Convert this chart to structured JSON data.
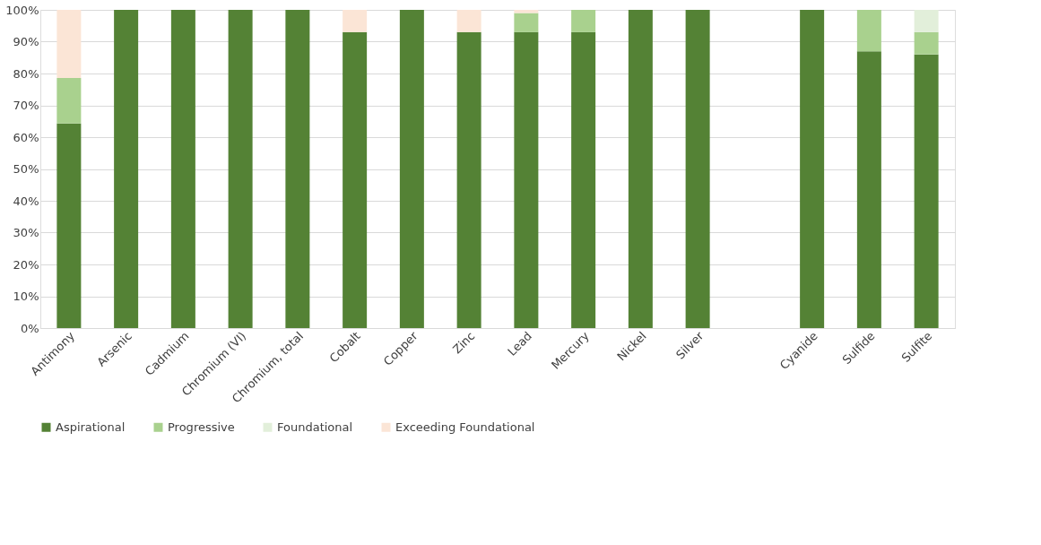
{
  "chart_data": {
    "type": "bar",
    "stacked": true,
    "categories": [
      "Antimony",
      "Arsenic",
      "Cadmium",
      "Chromium (VI)",
      "Chromium, total",
      "Cobalt",
      "Copper",
      "Zinc",
      "Lead",
      "Mercury",
      "Nickel",
      "Silver",
      null,
      "Cyanide",
      "Sulfide",
      "Sulfite"
    ],
    "series": [
      {
        "name": "Aspirational",
        "color": "#548235",
        "values": [
          64.3,
          100,
          100,
          100,
          100,
          93,
          100,
          93,
          93,
          93,
          100,
          100,
          null,
          100,
          87,
          86
        ]
      },
      {
        "name": "Progressive",
        "color": "#a9d18e",
        "values": [
          14.3,
          0,
          0,
          0,
          0,
          0,
          0,
          0,
          6,
          7,
          0,
          0,
          null,
          0,
          13,
          7
        ]
      },
      {
        "name": "Foundational",
        "color": "#e2efda",
        "values": [
          0,
          0,
          0,
          0,
          0,
          0,
          0,
          0,
          0,
          0,
          0,
          0,
          null,
          0,
          0,
          7
        ]
      },
      {
        "name": "Exceeding Foundational",
        "color": "#fbe5d6",
        "values": [
          21.4,
          0,
          0,
          0,
          0,
          7,
          0,
          7,
          1,
          0,
          0,
          0,
          null,
          0,
          0,
          0
        ]
      }
    ],
    "ylim": [
      0,
      100
    ],
    "yticks": [
      {
        "value": 0,
        "label": "0%"
      },
      {
        "value": 10,
        "label": "10%"
      },
      {
        "value": 20,
        "label": "20%"
      },
      {
        "value": 30,
        "label": "30%"
      },
      {
        "value": 40,
        "label": "40%"
      },
      {
        "value": 50,
        "label": "50%"
      },
      {
        "value": 60,
        "label": "60%"
      },
      {
        "value": 70,
        "label": "70%"
      },
      {
        "value": 80,
        "label": "80%"
      },
      {
        "value": 90,
        "label": "90%"
      },
      {
        "value": 100,
        "label": "100%"
      }
    ],
    "grid": "y",
    "legend": "bottom"
  }
}
